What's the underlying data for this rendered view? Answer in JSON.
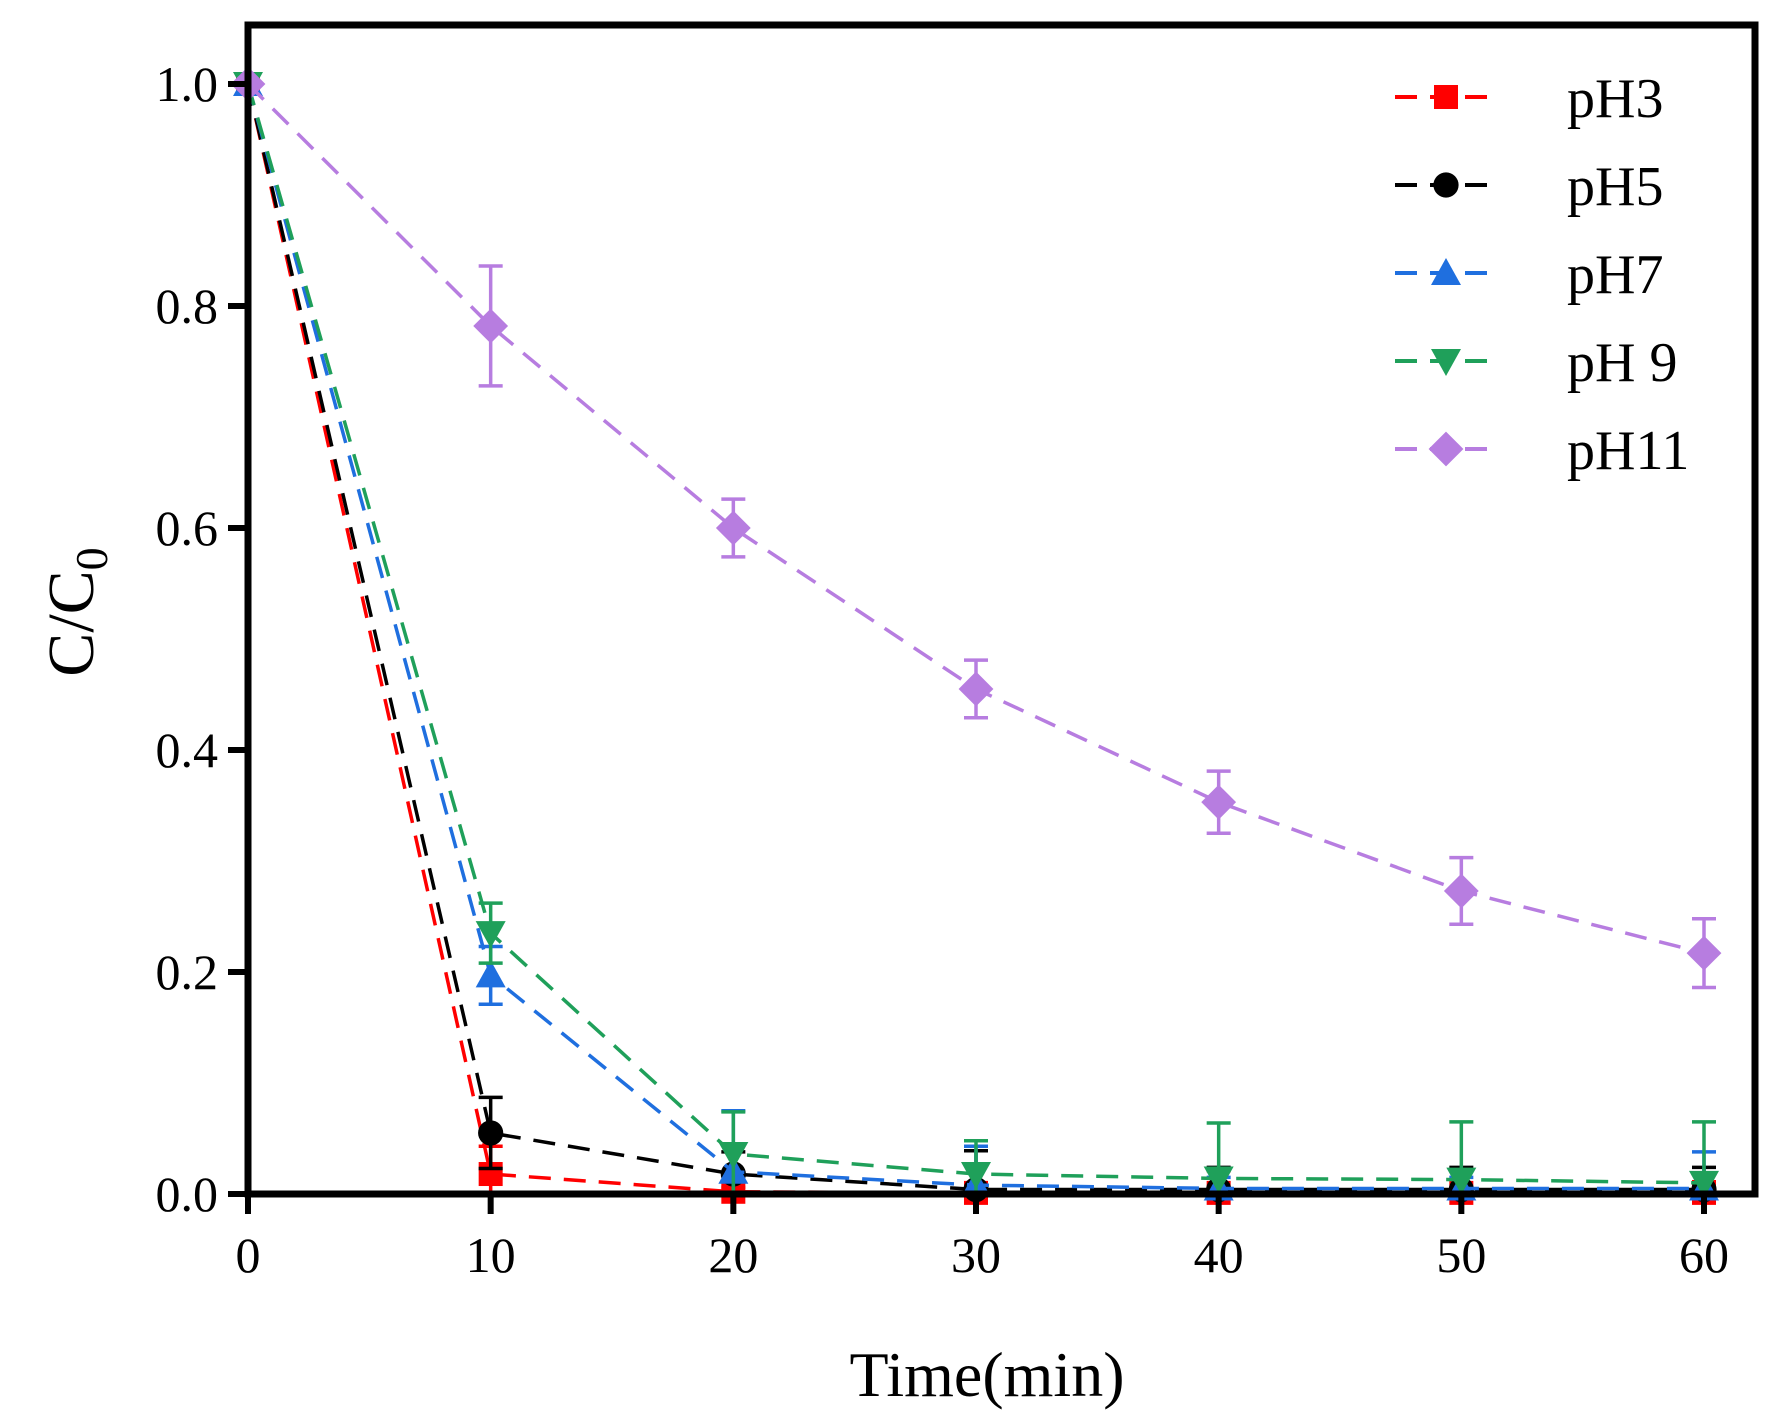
{
  "chart_data": {
    "type": "line",
    "title": "",
    "xlabel": "Time(min)",
    "ylabel": {
      "main": "C/C",
      "subscript": "0"
    },
    "xlim": [
      0,
      61
    ],
    "ylim": [
      0,
      1.05
    ],
    "xticks": [
      0,
      10,
      20,
      30,
      40,
      50,
      60
    ],
    "xtick_labels": [
      "0",
      "10",
      "20",
      "30",
      "40",
      "50",
      "60"
    ],
    "yticks": [
      0,
      0.2,
      0.4,
      0.6,
      0.8,
      1.0
    ],
    "ytick_labels": [
      "0.0",
      "0.2",
      "0.4",
      "0.6",
      "0.8",
      "1.0"
    ],
    "legend_position": "top-right",
    "grid": false,
    "x": [
      0,
      10,
      20,
      30,
      40,
      50,
      60
    ],
    "series": [
      {
        "name": "pH3",
        "color": "#ff0000",
        "marker": "square",
        "values": [
          1.0,
          0.018,
          0.002,
          0.001,
          0.001,
          0.001,
          0.001
        ],
        "errors": [
          0,
          0.025,
          0.004,
          0.003,
          0.02,
          0.003,
          0.01
        ]
      },
      {
        "name": "pH5",
        "color": "#000000",
        "marker": "circle",
        "values": [
          1.0,
          0.055,
          0.018,
          0.004,
          0.004,
          0.004,
          0.004
        ],
        "errors": [
          0,
          0.032,
          0.02,
          0.035,
          0.02,
          0.02,
          0.02
        ]
      },
      {
        "name": "pH7",
        "color": "#1f6fdf",
        "marker": "triangle-up",
        "values": [
          1.0,
          0.197,
          0.02,
          0.008,
          0.005,
          0.005,
          0.005
        ],
        "errors": [
          0,
          0.026,
          0.055,
          0.035,
          0.01,
          0.01,
          0.033
        ]
      },
      {
        "name": "pH 9",
        "color": "#1fa05a",
        "marker": "triangle-down",
        "values": [
          1.0,
          0.235,
          0.036,
          0.018,
          0.014,
          0.013,
          0.01
        ],
        "errors": [
          0,
          0.027,
          0.038,
          0.03,
          0.05,
          0.052,
          0.055
        ]
      },
      {
        "name": "pH11",
        "color": "#b77de0",
        "marker": "diamond",
        "values": [
          1.0,
          0.782,
          0.6,
          0.455,
          0.353,
          0.273,
          0.217
        ],
        "errors": [
          0,
          0.054,
          0.026,
          0.026,
          0.028,
          0.03,
          0.031
        ]
      }
    ]
  }
}
